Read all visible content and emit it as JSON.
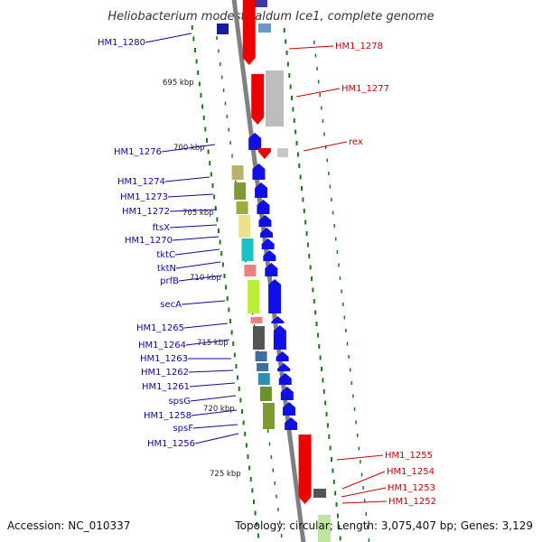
{
  "title": "Heliobacterium modesticaldum Ice1, complete genome",
  "accession": "Accession: NC_010337",
  "topology": "Topology: circular; Length: 3,075,407 bp; Genes: 3,129",
  "colors": {
    "forward_label": "#0b0b9e",
    "reverse_label": "#cc0000",
    "backbone": "#808080",
    "gc_ticks": "#1a7a1a"
  },
  "kbp_labels": [
    "695 kbp",
    "700 kbp",
    "705 kbp",
    "710 kbp",
    "715 kbp",
    "720 kbp",
    "725 kbp"
  ],
  "forward_genes": [
    "HM1_1280",
    "HM1_1276",
    "HM1_1274",
    "HM1_1273",
    "HM1_1272",
    "ftsX",
    "HM1_1270",
    "tktC",
    "tktN",
    "prfB",
    "secA",
    "HM1_1265",
    "HM1_1264",
    "HM1_1263",
    "HM1_1262",
    "HM1_1261",
    "spsG",
    "HM1_1258",
    "spsF",
    "HM1_1256"
  ],
  "reverse_genes": [
    "HM1_1278",
    "HM1_1277",
    "rex",
    "HM1_1255",
    "HM1_1254",
    "HM1_1253",
    "HM1_1252"
  ]
}
